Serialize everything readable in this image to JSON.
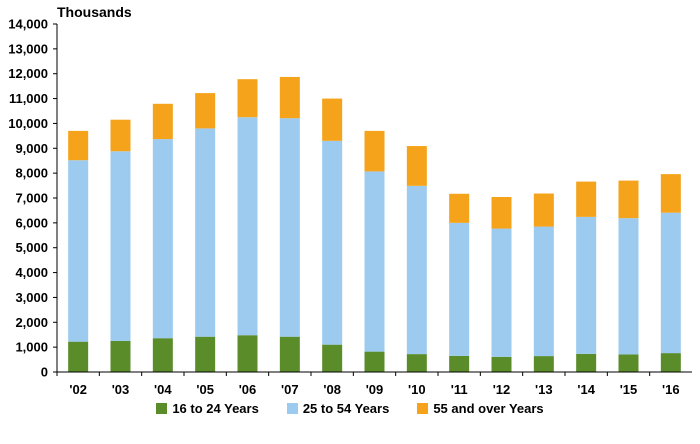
{
  "chart_data": {
    "type": "bar",
    "stacked": true,
    "unit_label": "Thousands",
    "categories": [
      "'02",
      "'03",
      "'04",
      "'05",
      "'06",
      "'07",
      "'08",
      "'09",
      "'10",
      "'11",
      "'12",
      "'13",
      "'14",
      "'15",
      "'16"
    ],
    "series": [
      {
        "name": "16 to 24 Years",
        "color": "#5b8c2a",
        "values": [
          1220,
          1250,
          1360,
          1420,
          1480,
          1420,
          1100,
          820,
          720,
          650,
          610,
          640,
          730,
          710,
          760
        ]
      },
      {
        "name": "25 to 54 Years",
        "color": "#9ccbef",
        "values": [
          7300,
          7630,
          8010,
          8380,
          8770,
          8790,
          8200,
          7250,
          6770,
          5350,
          5160,
          5210,
          5510,
          5480,
          5650
        ]
      },
      {
        "name": "55 and over Years",
        "color": "#f5a31a",
        "values": [
          1180,
          1270,
          1420,
          1420,
          1530,
          1660,
          1700,
          1630,
          1600,
          1170,
          1270,
          1330,
          1420,
          1510,
          1550
        ]
      }
    ],
    "ylim": [
      0,
      14000
    ],
    "yticks": [
      0,
      1000,
      2000,
      3000,
      4000,
      5000,
      6000,
      7000,
      8000,
      9000,
      10000,
      11000,
      12000,
      13000,
      14000
    ],
    "ytick_labels": [
      "0",
      "1,000",
      "2,000",
      "3,000",
      "4,000",
      "5,000",
      "6,000",
      "7,000",
      "8,000",
      "9,000",
      "10,000",
      "11,000",
      "12,000",
      "13,000",
      "14,000"
    ],
    "grid": false,
    "legend_position": "bottom"
  }
}
